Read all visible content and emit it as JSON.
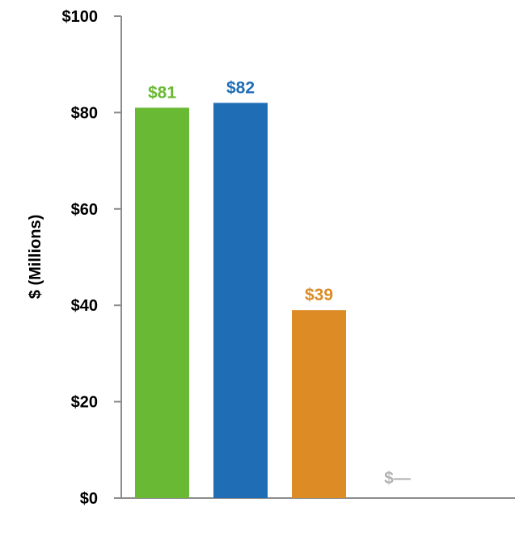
{
  "chart_data": {
    "type": "bar",
    "categories": [
      "",
      "",
      "",
      ""
    ],
    "values": [
      81,
      82,
      39,
      0
    ],
    "data_labels": [
      "$81",
      "$82",
      "$39",
      "$—"
    ],
    "bar_colors": [
      "#6ab934",
      "#1f6db4",
      "#dc8b25",
      "#b3b3b3"
    ],
    "title": "",
    "xlabel": "",
    "ylabel": "$ (Millions)",
    "ylim": [
      0,
      100
    ],
    "yticks": [
      0,
      20,
      40,
      60,
      80,
      100
    ],
    "ytick_labels": [
      "$0",
      "$20",
      "$40",
      "$60",
      "$80",
      "$100"
    ],
    "axis_color": "#8c8c8c",
    "grid": false,
    "legend": "none"
  }
}
